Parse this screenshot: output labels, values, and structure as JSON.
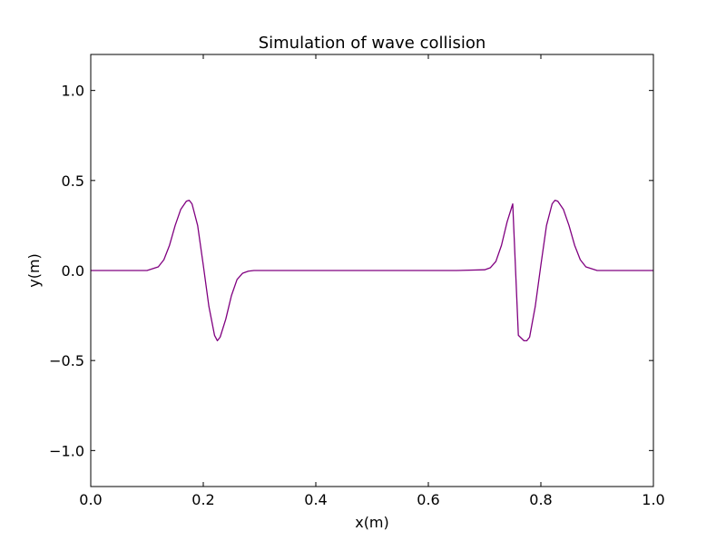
{
  "chart_data": {
    "type": "line",
    "title": "Simulation of wave collision",
    "xlabel": "x(m)",
    "ylabel": "y(m)",
    "xlim": [
      0.0,
      1.0
    ],
    "ylim": [
      -1.2,
      1.2
    ],
    "xticks": [
      0.0,
      0.2,
      0.4,
      0.6,
      0.8,
      1.0
    ],
    "xtick_labels": [
      "0.0",
      "0.2",
      "0.4",
      "0.6",
      "0.8",
      "1.0"
    ],
    "yticks": [
      -1.0,
      -0.5,
      0.0,
      0.5,
      1.0
    ],
    "ytick_labels": [
      "−1.0",
      "−0.5",
      "0.0",
      "0.5",
      "1.0"
    ],
    "grid": false,
    "legend": "none",
    "series": [
      {
        "color": "#800080",
        "x": [
          0.0,
          0.05,
          0.1,
          0.12,
          0.13,
          0.14,
          0.15,
          0.16,
          0.17,
          0.175,
          0.18,
          0.19,
          0.2,
          0.21,
          0.22,
          0.225,
          0.23,
          0.24,
          0.25,
          0.26,
          0.27,
          0.28,
          0.29,
          0.3,
          0.35,
          0.4,
          0.5,
          0.6,
          0.65,
          0.7,
          0.71,
          0.72,
          0.73,
          0.74,
          0.75,
          0.76,
          0.77,
          0.775,
          0.78,
          0.79,
          0.8,
          0.81,
          0.82,
          0.825,
          0.83,
          0.84,
          0.85,
          0.86,
          0.87,
          0.88,
          0.9,
          0.95,
          1.0
        ],
        "y": [
          0.0,
          0.0,
          0.0,
          0.02,
          0.06,
          0.14,
          0.25,
          0.34,
          0.385,
          0.39,
          0.37,
          0.25,
          0.03,
          -0.2,
          -0.36,
          -0.39,
          -0.37,
          -0.27,
          -0.14,
          -0.05,
          -0.015,
          -0.004,
          0.0,
          0.0,
          0.0,
          0.0,
          0.0,
          0.0,
          0.0,
          0.004,
          0.015,
          0.05,
          0.14,
          0.27,
          0.37,
          -0.36,
          -0.39,
          -0.39,
          -0.37,
          -0.2,
          0.03,
          0.25,
          0.37,
          0.39,
          0.385,
          0.34,
          0.25,
          0.14,
          0.06,
          0.02,
          0.0,
          0.0,
          0.0
        ]
      }
    ]
  }
}
